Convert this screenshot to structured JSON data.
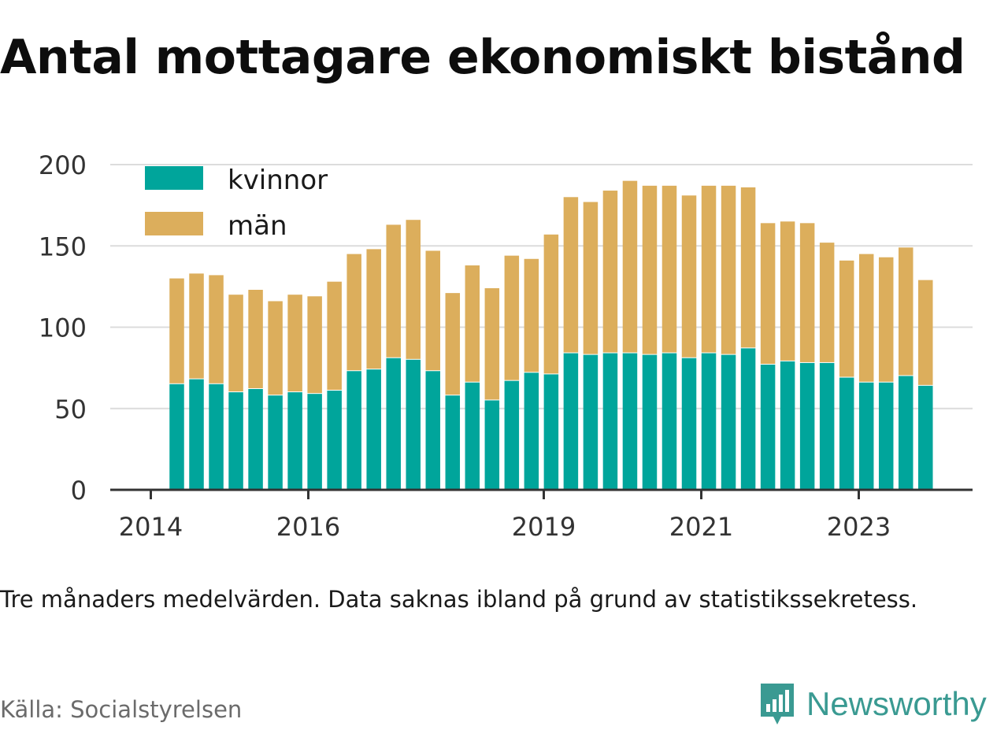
{
  "title": "Antal mottagare ekonomiskt bistånd",
  "note": "Tre månaders medelvärden. Data saknas ibland på grund av statistikssekretess.",
  "source": "Källa: Socialstyrelsen",
  "brand": {
    "name": "Newsworthy",
    "icon": "newsworthy-logo-icon",
    "color": "#3a9a92"
  },
  "colors": {
    "kvinnor": "#00a59b",
    "man": "#dcae5c",
    "grid": "#dcdcdc",
    "axis": "#333333"
  },
  "chart_data": {
    "type": "bar",
    "stacked": true,
    "x_tick_labels": [
      "2014",
      "2016",
      "2019",
      "2021",
      "2023"
    ],
    "y_ticks": [
      0,
      50,
      100,
      150,
      200
    ],
    "ylim": [
      0,
      200
    ],
    "legend": "top-left",
    "grid": true,
    "series": [
      {
        "name": "kvinnor",
        "color": "#00a59b",
        "values": [
          65,
          68,
          65,
          60,
          62,
          58,
          60,
          59,
          61,
          73,
          74,
          81,
          80,
          73,
          58,
          66,
          55,
          67,
          72,
          71,
          84,
          83,
          84,
          84,
          83,
          84,
          81,
          84,
          83,
          87,
          77,
          79,
          78,
          78,
          69,
          66,
          66,
          70,
          64
        ]
      },
      {
        "name": "män",
        "color": "#dcae5c",
        "values": [
          65,
          65,
          67,
          60,
          61,
          58,
          60,
          60,
          67,
          72,
          74,
          82,
          86,
          74,
          63,
          72,
          69,
          77,
          70,
          86,
          96,
          94,
          100,
          106,
          104,
          103,
          100,
          103,
          104,
          99,
          87,
          86,
          86,
          74,
          72,
          79,
          77,
          79,
          65
        ]
      }
    ]
  }
}
